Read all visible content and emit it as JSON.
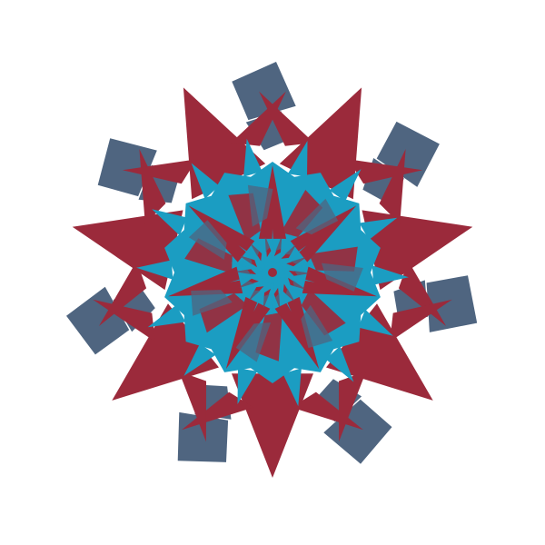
{
  "artwork": {
    "background": "#ffffff",
    "palette": {
      "red": "#9b2a3b",
      "cyan": "#1b9dc2",
      "slate": "#4f6580"
    },
    "symmetry": "7-fold radial",
    "layers": [
      {
        "name": "outer-slate-bowties",
        "color": "slate",
        "count": 7
      },
      {
        "name": "outer-red-star-points",
        "color": "red",
        "count": 7
      },
      {
        "name": "cyan-ring",
        "color": "cyan",
        "count": 14
      },
      {
        "name": "inner-red-star",
        "color": "red",
        "count": 7
      },
      {
        "name": "inner-slate-wedges",
        "color": "slate",
        "count": 7
      },
      {
        "name": "center-kaleidoscope",
        "color": "mixed",
        "count": 28
      }
    ]
  }
}
